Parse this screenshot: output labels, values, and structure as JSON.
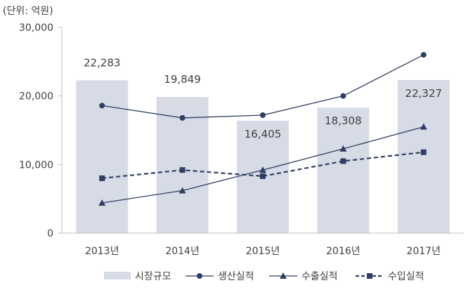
{
  "chart_data": {
    "type": "bar",
    "unit_label": "(단위: 억원)",
    "categories": [
      "2013년",
      "2014년",
      "2015년",
      "2016년",
      "2017년"
    ],
    "ylim": [
      0,
      30000
    ],
    "yticks": [
      0,
      10000,
      20000,
      30000
    ],
    "ytick_labels": [
      "0",
      "10,000",
      "20,000",
      "30,000"
    ],
    "grid": false,
    "legend_position": "bottom",
    "series": [
      {
        "name": "시장규모",
        "kind": "bar",
        "color": "#d6dbe5",
        "values": [
          22283,
          19849,
          16405,
          18308,
          22327
        ],
        "data_labels": [
          "22,283",
          "19,849",
          "16,405",
          "18,308",
          "22,327"
        ]
      },
      {
        "name": "생산실적",
        "kind": "line",
        "marker": "circle",
        "line_style": "solid",
        "color": "#2f3e62",
        "values": [
          18600,
          16800,
          17200,
          20000,
          26000
        ]
      },
      {
        "name": "수출실적",
        "kind": "line",
        "marker": "triangle",
        "line_style": "solid",
        "color": "#2f3e62",
        "values": [
          4400,
          6200,
          9200,
          12300,
          15500
        ]
      },
      {
        "name": "수입실적",
        "kind": "line",
        "marker": "square",
        "line_style": "dashed",
        "color": "#2f3e62",
        "values": [
          8000,
          9200,
          8300,
          10500,
          11800
        ]
      }
    ]
  }
}
